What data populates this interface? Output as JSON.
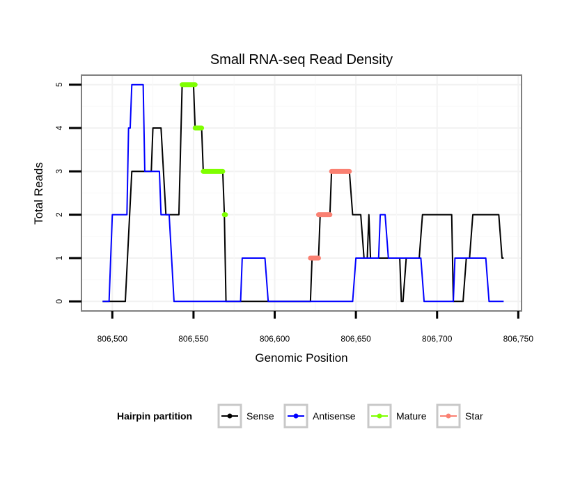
{
  "chart_data": {
    "type": "line",
    "title": "Small RNA-seq Read Density",
    "xlabel": "Genomic Position",
    "ylabel": "Total Reads",
    "xlim": [
      806481,
      806752
    ],
    "ylim": [
      -0.22,
      5.22
    ],
    "x_ticks": [
      806500,
      806550,
      806600,
      806650,
      806700,
      806750
    ],
    "x_tick_labels": [
      "806,500",
      "806,550",
      "806,600",
      "806,650",
      "806,700",
      "806,750"
    ],
    "y_ticks": [
      0,
      1,
      2,
      3,
      4,
      5
    ],
    "y_tick_labels": [
      "0",
      "1",
      "2",
      "3",
      "4",
      "5"
    ],
    "grid": true,
    "legend": {
      "title": "Hairpin partition",
      "position": "bottom",
      "entries": [
        {
          "name": "Sense",
          "color": "#000000"
        },
        {
          "name": "Antisense",
          "color": "#0000ff"
        },
        {
          "name": "Mature",
          "color": "#7fff00"
        },
        {
          "name": "Star",
          "color": "#fa8072"
        }
      ]
    },
    "series": [
      {
        "name": "Sense",
        "color": "#000000",
        "points": [
          [
            806494,
            0
          ],
          [
            806508,
            0
          ],
          [
            806512,
            3
          ],
          [
            806524,
            3
          ],
          [
            806525,
            4
          ],
          [
            806530,
            4
          ],
          [
            806533,
            2
          ],
          [
            806541,
            2
          ],
          [
            806543,
            5
          ],
          [
            806550,
            5
          ],
          [
            806551,
            4
          ],
          [
            806555,
            4
          ],
          [
            806556,
            3
          ],
          [
            806568,
            3
          ],
          [
            806569,
            2
          ],
          [
            806570,
            0
          ],
          [
            806622,
            0
          ],
          [
            806623,
            1
          ],
          [
            806627,
            1
          ],
          [
            806628,
            2
          ],
          [
            806634,
            2
          ],
          [
            806635,
            3
          ],
          [
            806646,
            3
          ],
          [
            806648,
            2
          ],
          [
            806653,
            2
          ],
          [
            806655,
            1
          ],
          [
            806657,
            1
          ],
          [
            806658,
            2
          ],
          [
            806659,
            1
          ],
          [
            806677,
            1
          ],
          [
            806678,
            0
          ],
          [
            806679,
            0
          ],
          [
            806681,
            1
          ],
          [
            806689,
            1
          ],
          [
            806691,
            2
          ],
          [
            806709,
            2
          ],
          [
            806710,
            0
          ],
          [
            806716,
            0
          ],
          [
            806718,
            1
          ],
          [
            806720,
            1
          ],
          [
            806722,
            2
          ],
          [
            806738,
            2
          ],
          [
            806740,
            1
          ],
          [
            806741,
            1
          ]
        ]
      },
      {
        "name": "Antisense",
        "color": "#0000ff",
        "points": [
          [
            806494,
            0
          ],
          [
            806498,
            0
          ],
          [
            806500,
            2
          ],
          [
            806509,
            2
          ],
          [
            806510,
            4
          ],
          [
            806511,
            4
          ],
          [
            806512,
            5
          ],
          [
            806519,
            5
          ],
          [
            806520,
            3
          ],
          [
            806529,
            3
          ],
          [
            806530,
            2
          ],
          [
            806535,
            2
          ],
          [
            806538,
            0
          ],
          [
            806579,
            0
          ],
          [
            806580,
            1
          ],
          [
            806594,
            1
          ],
          [
            806596,
            0
          ],
          [
            806648,
            0
          ],
          [
            806650,
            1
          ],
          [
            806664,
            1
          ],
          [
            806665,
            2
          ],
          [
            806668,
            2
          ],
          [
            806670,
            1
          ],
          [
            806690,
            1
          ],
          [
            806692,
            0
          ],
          [
            806710,
            0
          ],
          [
            806711,
            1
          ],
          [
            806730,
            1
          ],
          [
            806732,
            0
          ],
          [
            806741,
            0
          ]
        ]
      },
      {
        "name": "Mature",
        "color": "#7fff00",
        "segments": [
          {
            "x": [
              806543,
              806551
            ],
            "y": 5
          },
          {
            "x": [
              806551,
              806555
            ],
            "y": 4
          },
          {
            "x": [
              806556,
              806568
            ],
            "y": 3
          },
          {
            "x": [
              806569,
              806569.7
            ],
            "y": 2
          }
        ]
      },
      {
        "name": "Star",
        "color": "#fa8072",
        "segments": [
          {
            "x": [
              806622,
              806627
            ],
            "y": 1
          },
          {
            "x": [
              806627,
              806634
            ],
            "y": 2
          },
          {
            "x": [
              806635,
              806646
            ],
            "y": 3
          }
        ]
      }
    ]
  }
}
